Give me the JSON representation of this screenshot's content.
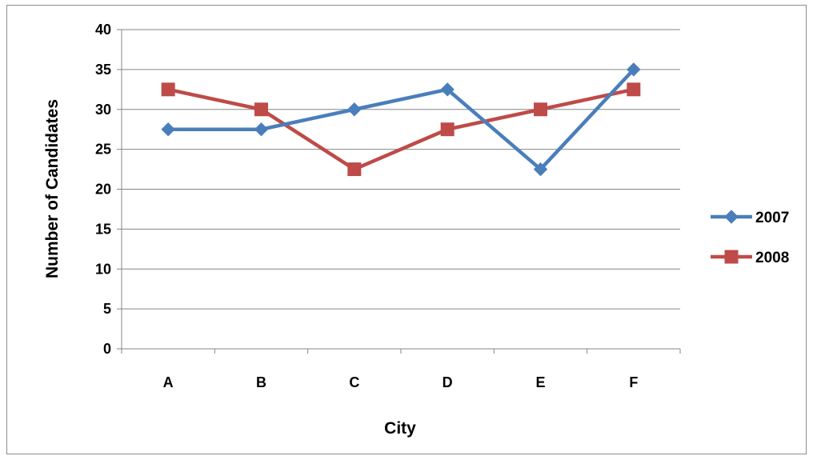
{
  "chart_data": {
    "type": "line",
    "title": "",
    "xlabel": "City",
    "ylabel": "Number of Candidates",
    "categories": [
      "A",
      "B",
      "C",
      "D",
      "E",
      "F"
    ],
    "ylim": [
      0,
      40
    ],
    "yticks": [
      "0",
      "5",
      "10",
      "15",
      "20",
      "25",
      "30",
      "35",
      "40"
    ],
    "grid": "horizontal",
    "legend_position": "right",
    "series": [
      {
        "name": "2007",
        "values": [
          27.5,
          27.5,
          30,
          32.5,
          22.5,
          35
        ],
        "color": "#4a7ebb",
        "marker": "diamond"
      },
      {
        "name": "2008",
        "values": [
          32.5,
          30,
          22.5,
          27.5,
          30,
          32.5
        ],
        "color": "#be4b48",
        "marker": "square"
      }
    ]
  }
}
